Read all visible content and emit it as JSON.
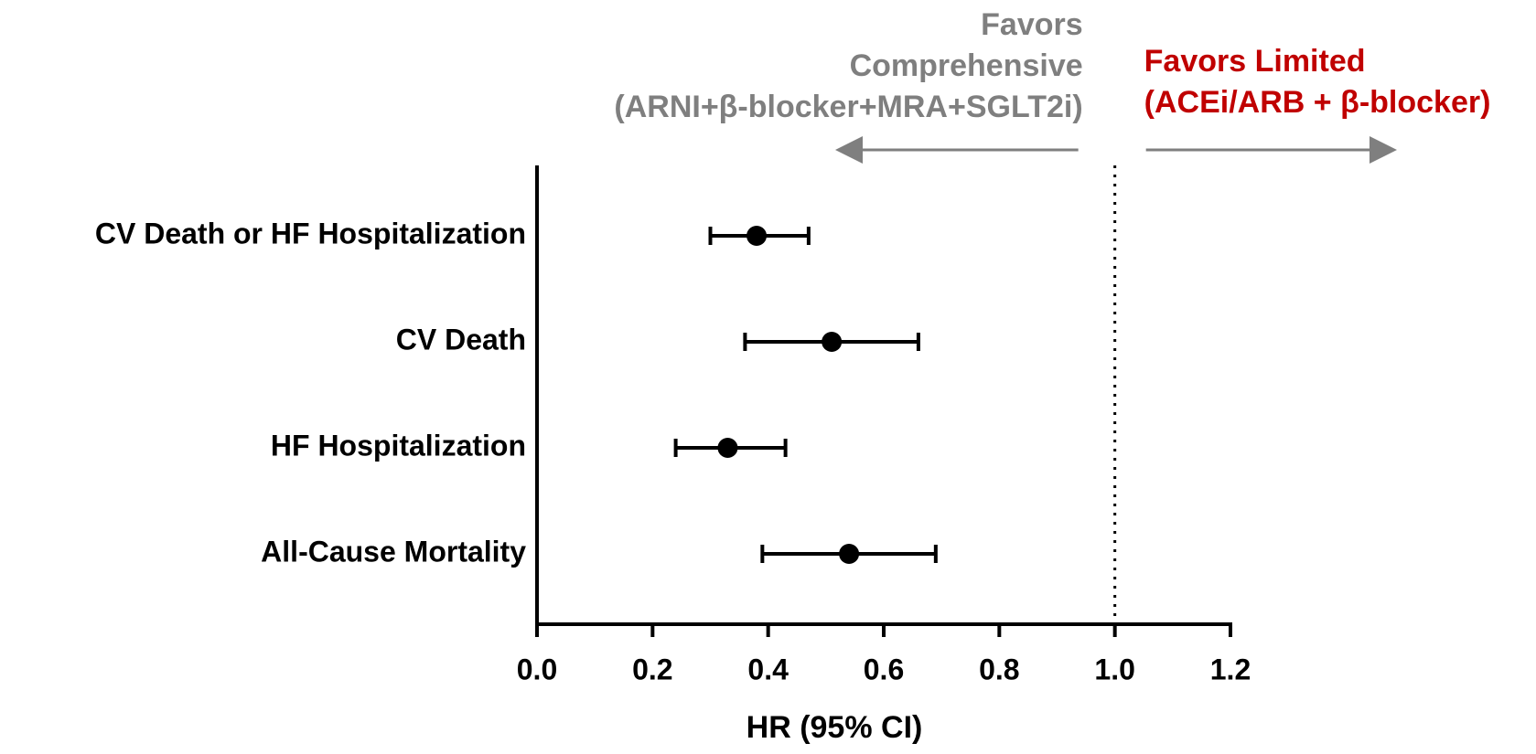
{
  "chart_data": {
    "type": "forest",
    "categories": [
      "CV Death or HF Hospitalization",
      "CV Death",
      "HF Hospitalization",
      "All-Cause Mortality"
    ],
    "series": [
      {
        "values": [
          0.38,
          0.51,
          0.33,
          0.54
        ],
        "lower": [
          0.3,
          0.36,
          0.24,
          0.39
        ],
        "upper": [
          0.47,
          0.66,
          0.43,
          0.69
        ],
        "color": "#000000"
      }
    ],
    "xlabel": "HR (95% CI)",
    "xlim": [
      0,
      1.2
    ],
    "xticks": [
      {
        "value": 0,
        "label": "0.0"
      },
      0.2,
      0.4,
      0.6,
      0.8,
      {
        "value": 1,
        "label": "1.0"
      },
      1.2
    ],
    "reference_line": 1,
    "annotations": [
      {
        "lines": [
          "Favors",
          "Comprehensive",
          "(ARNI+β-blocker+MRA+SGLT2i)"
        ],
        "color": "#7f7f7f",
        "direction": "left"
      },
      {
        "lines": [
          "Favors Limited",
          "(ACEi/ARB + β-blocker)"
        ],
        "color": "#c00000",
        "direction": "right"
      }
    ]
  }
}
